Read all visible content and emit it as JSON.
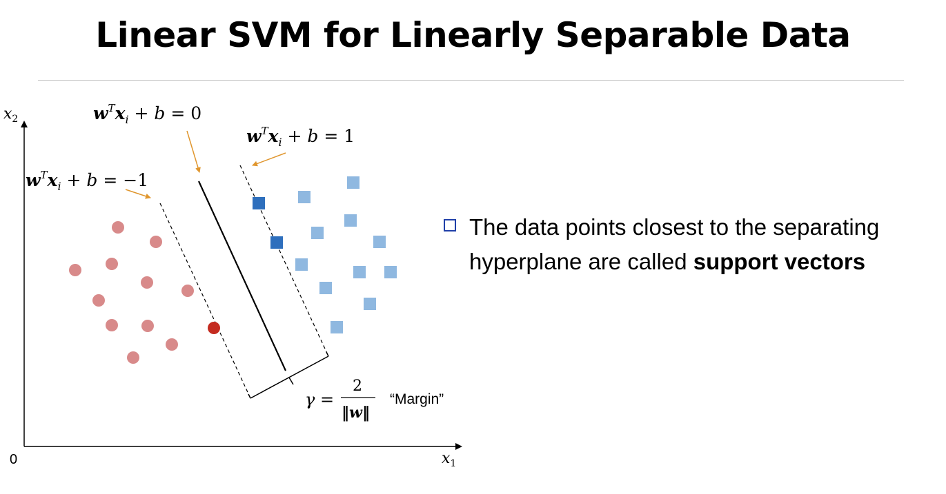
{
  "title": "Linear SVM for Linearly Separable Data",
  "axes": {
    "x_label": "x",
    "x_sub": "1",
    "y_label": "x",
    "y_sub": "2",
    "origin": "0"
  },
  "equations": {
    "hyperplane": "0",
    "positive_margin": "1",
    "negative_margin": "−1"
  },
  "margin": {
    "gamma": "γ =",
    "numerator": "2",
    "denominator": "‖w‖",
    "label": "“Margin”"
  },
  "bullet": {
    "line1": "The data points closest to the separating",
    "line2_prefix": "hyperplane are called ",
    "line2_bold": "support vectors"
  },
  "colors": {
    "negative_class": "#d88a8a",
    "negative_support": "#c42b20",
    "positive_class": "#8fb8e0",
    "positive_support": "#2e6fbd",
    "annotation_arrow": "#e0962e",
    "bullet_box": "#1f3fa8"
  }
}
